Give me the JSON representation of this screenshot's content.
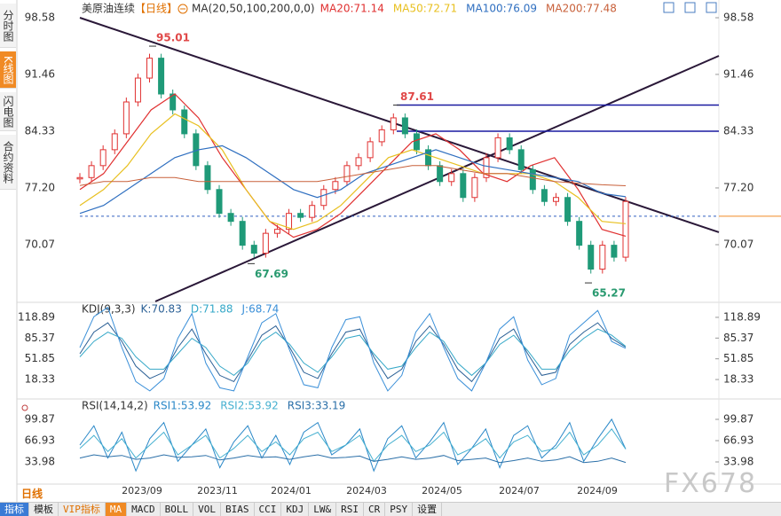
{
  "sidebar_tabs": [
    "分时图",
    "K线图",
    "闪电图",
    "合约资料"
  ],
  "chart_data": [
    {
      "type": "candlestick",
      "title": "美原油连续",
      "period": "【日线】",
      "indicator": "MA(20,50,100,200,0,0)",
      "ylim": [
        62.94,
        98.58
      ],
      "yticks": [
        98.58,
        91.46,
        84.33,
        {
          "value": 77.2,
          "label": "77.20"
        },
        70.07
      ],
      "close": [
        78.5,
        80,
        82,
        84,
        88,
        91,
        93.5,
        89,
        87,
        84,
        80,
        77,
        74,
        73,
        70,
        69,
        71.5,
        72,
        74,
        73.5,
        75,
        77,
        78,
        80,
        81,
        83,
        84.5,
        86,
        84,
        82,
        80,
        78,
        79,
        76,
        78.5,
        81,
        83.5,
        82,
        79.5,
        77,
        75.5,
        76,
        73,
        70,
        67,
        70,
        68.5,
        75.5
      ],
      "up_color": "#e03030",
      "down_color": "#1f9a78",
      "series": [
        {
          "name": "MA20",
          "color": "#e03030",
          "values": [
            77,
            79,
            83,
            87,
            89,
            86,
            81,
            77,
            73,
            71,
            72,
            74,
            77,
            80,
            83,
            84,
            82,
            79,
            78,
            80,
            81,
            77,
            72,
            71.14
          ]
        },
        {
          "name": "MA50",
          "color": "#e8c020",
          "values": [
            75,
            77,
            80,
            84,
            86.5,
            85,
            82,
            77,
            73,
            72,
            73,
            75,
            78,
            81,
            82,
            81,
            80,
            79,
            79,
            79,
            78,
            76,
            73,
            72.71
          ]
        },
        {
          "name": "MA100",
          "color": "#2f6fc0",
          "values": [
            74,
            75,
            77,
            79,
            81,
            82,
            82.5,
            81,
            79,
            77,
            76,
            77,
            79,
            80,
            81,
            82,
            81,
            80,
            79.5,
            79,
            78.5,
            78,
            76.5,
            76.09
          ]
        },
        {
          "name": "MA200",
          "color": "#c8603a",
          "values": [
            77.5,
            78,
            78,
            78.5,
            78.5,
            78,
            78,
            78,
            78,
            78,
            78,
            78.5,
            79,
            79.5,
            80,
            80,
            79.5,
            79,
            79,
            78.5,
            78,
            77.8,
            77.6,
            77.48
          ]
        }
      ],
      "annotations": [
        {
          "value": 95.01,
          "color": "#e04848"
        },
        {
          "value": 87.61,
          "color": "#e04848"
        },
        {
          "value": 67.69,
          "color": "#2a9a70"
        },
        {
          "value": 65.27,
          "color": "#2a9a70"
        }
      ],
      "hlines": [
        87.61,
        84.33
      ],
      "hline_color": "#1a1aa0",
      "last_price": 73.64,
      "trendlines": [
        [
          98.58,
          71.63
        ],
        [
          62.94,
          93.79
        ]
      ]
    },
    {
      "type": "line",
      "title": "KDJ(9,3,3)",
      "ylim": [
        -8.8,
        140.3
      ],
      "yticks": [
        118.89,
        85.37,
        51.85,
        18.33
      ],
      "series": [
        {
          "name": "K",
          "color": "#2a5f95",
          "values": [
            60,
            95,
            110,
            80,
            40,
            20,
            30,
            70,
            100,
            60,
            25,
            15,
            50,
            90,
            105,
            70,
            30,
            20,
            60,
            95,
            100,
            55,
            20,
            35,
            80,
            105,
            75,
            35,
            15,
            45,
            85,
            100,
            60,
            25,
            30,
            75,
            95,
            110,
            85,
            70.83
          ]
        },
        {
          "name": "D",
          "color": "#35a8c8",
          "values": [
            55,
            80,
            95,
            85,
            55,
            35,
            35,
            60,
            85,
            70,
            40,
            25,
            45,
            80,
            95,
            75,
            45,
            30,
            55,
            85,
            90,
            60,
            35,
            40,
            70,
            95,
            80,
            45,
            25,
            45,
            75,
            90,
            65,
            35,
            35,
            65,
            85,
            100,
            90,
            71.88
          ]
        },
        {
          "name": "J",
          "color": "#3a8fd8",
          "values": [
            70,
            120,
            135,
            70,
            15,
            0,
            20,
            85,
            125,
            45,
            5,
            0,
            55,
            110,
            125,
            65,
            10,
            5,
            70,
            115,
            120,
            45,
            0,
            25,
            95,
            125,
            70,
            20,
            0,
            45,
            100,
            120,
            50,
            10,
            20,
            90,
            110,
            130,
            80,
            68.74
          ]
        }
      ]
    },
    {
      "type": "line",
      "title": "RSI(14,14,2)",
      "ylim": [
        1.04,
        128.7
      ],
      "yticks": [
        99.87,
        66.93,
        33.98
      ],
      "series": [
        {
          "name": "RSI1",
          "color": "#2a88c8",
          "values": [
            60,
            90,
            40,
            80,
            20,
            70,
            95,
            35,
            60,
            85,
            25,
            65,
            90,
            40,
            75,
            30,
            80,
            95,
            45,
            60,
            85,
            20,
            70,
            90,
            40,
            65,
            95,
            30,
            55,
            85,
            25,
            75,
            90,
            40,
            60,
            95,
            35,
            70,
            100,
            53.92
          ]
        },
        {
          "name": "RSI2",
          "color": "#45b0d0",
          "values": [
            55,
            75,
            50,
            70,
            40,
            60,
            80,
            45,
            60,
            75,
            40,
            55,
            75,
            50,
            65,
            45,
            70,
            80,
            50,
            60,
            75,
            35,
            60,
            75,
            50,
            60,
            80,
            45,
            55,
            70,
            40,
            65,
            75,
            50,
            55,
            80,
            45,
            60,
            85,
            53.92
          ]
        },
        {
          "name": "RSI3",
          "color": "#2a6fa8",
          "values": [
            40,
            45,
            42,
            44,
            38,
            40,
            45,
            41,
            42,
            44,
            37,
            40,
            44,
            41,
            42,
            38,
            42,
            45,
            40,
            41,
            43,
            35,
            38,
            42,
            38,
            40,
            44,
            36,
            38,
            40,
            33,
            36,
            40,
            35,
            37,
            42,
            33,
            35,
            40,
            33.19
          ]
        }
      ]
    }
  ],
  "x_labels": [
    "2023/09",
    "2023/11",
    "2024/01",
    "2024/03",
    "2024/05",
    "2024/07",
    "2024/09"
  ],
  "period_button": "日线",
  "toolbar": [
    "指标",
    "模板",
    "VIP指标",
    "MA",
    "MACD",
    "BOLL",
    "VOL",
    "BIAS",
    "CCI",
    "KDJ",
    "LW&",
    "RSI",
    "CR",
    "PSY",
    "设置"
  ],
  "watermark": "FX678"
}
